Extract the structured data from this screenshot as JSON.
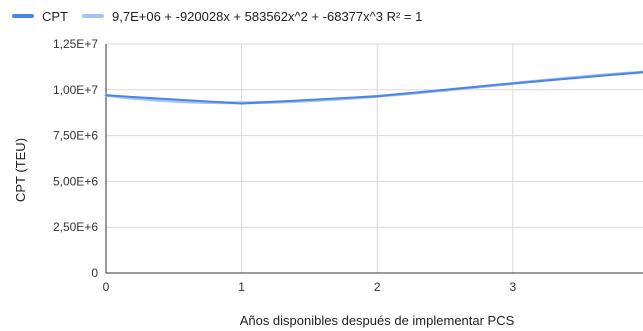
{
  "chart_data": {
    "type": "line",
    "title": "",
    "xlabel": "Años disponibles después de implementar PCS",
    "ylabel": "CPT (TEU)",
    "x_ticks": [
      "0",
      "1",
      "2",
      "3"
    ],
    "y_ticks": [
      "0",
      "2,50E+6",
      "5,00E+6",
      "7,50E+6",
      "1,00E+7",
      "1,25E+7"
    ],
    "xlim": [
      0,
      3.96
    ],
    "ylim": [
      0,
      12500000
    ],
    "grid": true,
    "legend_position": "top-left",
    "series": [
      {
        "name": "CPT",
        "color": "#4a86e8",
        "x": [
          0,
          1,
          2,
          3
        ],
        "y": [
          9700000,
          9250000,
          9650000,
          10350000
        ]
      },
      {
        "name": "9,7E+06 + -920028x + 583562x^2 + -68377x^3 R² = 1",
        "color": "#a4c2f4",
        "trendline": true,
        "coefficients": [
          9700000,
          -920028,
          583562,
          -68377
        ]
      }
    ]
  }
}
